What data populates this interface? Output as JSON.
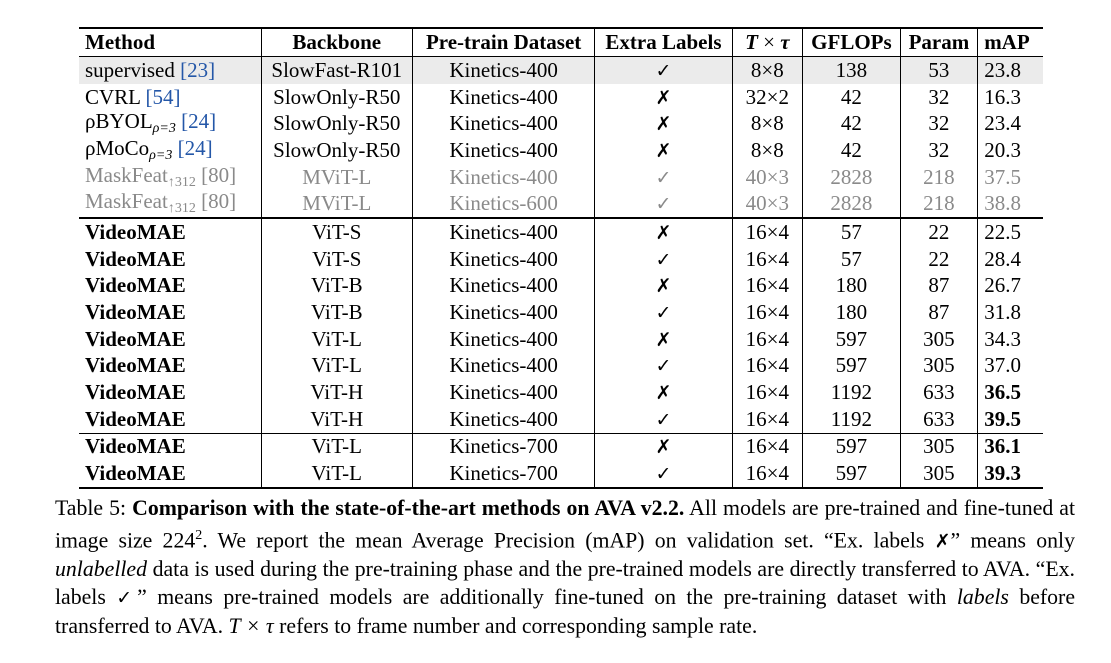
{
  "table": {
    "headers": {
      "method": "Method",
      "backbone": "Backbone",
      "dataset": "Pre-train Dataset",
      "labels": "Extra Labels",
      "ttau_t": "T",
      "ttau_x": "×",
      "ttau_tau": "τ",
      "gflops": "GFLOPs",
      "param": "Param",
      "map": "mAP"
    },
    "rows": [
      {
        "method": "supervised",
        "sub": "",
        "suffix": "",
        "cite": "[23]",
        "backbone": "SlowFast-R101",
        "dataset": "Kinetics-400",
        "labels": "✓",
        "ttau": "8×8",
        "gflops": "138",
        "param": "53",
        "map": "23.8"
      },
      {
        "method": "CVRL",
        "sub": "",
        "suffix": "",
        "cite": "[54]",
        "backbone": "SlowOnly-R50",
        "dataset": "Kinetics-400",
        "labels": "✗",
        "ttau": "32×2",
        "gflops": "42",
        "param": "32",
        "map": "16.3"
      },
      {
        "method": "ρBYOL",
        "sub": "ρ=3",
        "suffix": "",
        "cite": "[24]",
        "backbone": "SlowOnly-R50",
        "dataset": "Kinetics-400",
        "labels": "✗",
        "ttau": "8×8",
        "gflops": "42",
        "param": "32",
        "map": "23.4"
      },
      {
        "method": "ρMoCo",
        "sub": "ρ=3",
        "suffix": "",
        "cite": "[24]",
        "backbone": "SlowOnly-R50",
        "dataset": "Kinetics-400",
        "labels": "✗",
        "ttau": "8×8",
        "gflops": "42",
        "param": "32",
        "map": "20.3"
      },
      {
        "method": "MaskFeat",
        "sub": "",
        "suffix": "↑312",
        "cite": "[80]",
        "backbone": "MViT-L",
        "dataset": "Kinetics-400",
        "labels": "✓",
        "ttau": "40×3",
        "gflops": "2828",
        "param": "218",
        "map": "37.5"
      },
      {
        "method": "MaskFeat",
        "sub": "",
        "suffix": "↑312",
        "cite": "[80]",
        "backbone": "MViT-L",
        "dataset": "Kinetics-600",
        "labels": "✓",
        "ttau": "40×3",
        "gflops": "2828",
        "param": "218",
        "map": "38.8"
      },
      {
        "method": "VideoMAE",
        "backbone": "ViT-S",
        "dataset": "Kinetics-400",
        "labels": "✗",
        "ttau": "16×4",
        "gflops": "57",
        "param": "22",
        "map": "22.5"
      },
      {
        "method": "VideoMAE",
        "backbone": "ViT-S",
        "dataset": "Kinetics-400",
        "labels": "✓",
        "ttau": "16×4",
        "gflops": "57",
        "param": "22",
        "map": "28.4"
      },
      {
        "method": "VideoMAE",
        "backbone": "ViT-B",
        "dataset": "Kinetics-400",
        "labels": "✗",
        "ttau": "16×4",
        "gflops": "180",
        "param": "87",
        "map": "26.7"
      },
      {
        "method": "VideoMAE",
        "backbone": "ViT-B",
        "dataset": "Kinetics-400",
        "labels": "✓",
        "ttau": "16×4",
        "gflops": "180",
        "param": "87",
        "map": "31.8"
      },
      {
        "method": "VideoMAE",
        "backbone": "ViT-L",
        "dataset": "Kinetics-400",
        "labels": "✗",
        "ttau": "16×4",
        "gflops": "597",
        "param": "305",
        "map": "34.3"
      },
      {
        "method": "VideoMAE",
        "backbone": "ViT-L",
        "dataset": "Kinetics-400",
        "labels": "✓",
        "ttau": "16×4",
        "gflops": "597",
        "param": "305",
        "map": "37.0"
      },
      {
        "method": "VideoMAE",
        "backbone": "ViT-H",
        "dataset": "Kinetics-400",
        "labels": "✗",
        "ttau": "16×4",
        "gflops": "1192",
        "param": "633",
        "map": "36.5"
      },
      {
        "method": "VideoMAE",
        "backbone": "ViT-H",
        "dataset": "Kinetics-400",
        "labels": "✓",
        "ttau": "16×4",
        "gflops": "1192",
        "param": "633",
        "map": "39.5"
      },
      {
        "method": "VideoMAE",
        "backbone": "ViT-L",
        "dataset": "Kinetics-700",
        "labels": "✗",
        "ttau": "16×4",
        "gflops": "597",
        "param": "305",
        "map": "36.1"
      },
      {
        "method": "VideoMAE",
        "backbone": "ViT-L",
        "dataset": "Kinetics-700",
        "labels": "✓",
        "ttau": "16×4",
        "gflops": "597",
        "param": "305",
        "map": "39.3"
      }
    ]
  },
  "caption": {
    "prefix": "Table 5: ",
    "bold": "Comparison with the state-of-the-art methods on AVA v2.2.",
    "s1": " All models are pre-trained and fine-tuned at image size 224",
    "sup": "2",
    "s2": ". We report the mean Average Precision (mAP) on validation set. “Ex. labels ",
    "mark_x": "✗",
    "s3": "” means only ",
    "em1": "unlabelled",
    "s4": " data is used during the pre-training phase and the pre-trained models are directly transferred to AVA. “Ex. labels ",
    "mark_check": "✓",
    "s5": "” means pre-trained models are additionally fine-tuned on the pre-training dataset with ",
    "em2": "labels",
    "s6": " before transferred to AVA. ",
    "math": "T × τ",
    "s7": " refers to frame number and corresponding sample rate."
  }
}
